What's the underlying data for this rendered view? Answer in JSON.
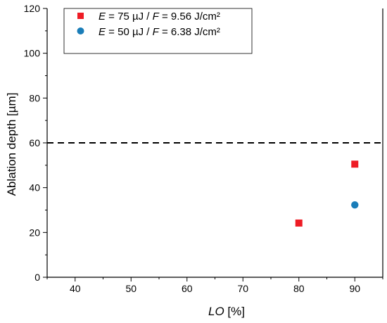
{
  "chart_data": {
    "type": "scatter",
    "xlabel_italic": "LO",
    "xlabel_rest": " [%]",
    "ylabel": "Ablation depth [µm]",
    "xlim": [
      35,
      95
    ],
    "ylim": [
      0,
      120
    ],
    "xticks": [
      40,
      50,
      60,
      70,
      80,
      90
    ],
    "yticks": [
      0,
      20,
      40,
      60,
      80,
      100,
      120
    ],
    "grid": false,
    "legend_position": "top-left",
    "reference_line": {
      "y": 60,
      "style": "dashed",
      "color": "#000000"
    },
    "series": [
      {
        "legend_parts": [
          "E",
          " = 75 µJ / ",
          "F",
          " = 9.56 J/cm²"
        ],
        "marker": "square",
        "color": "#ee1c25",
        "points": [
          {
            "x": 80,
            "y": 24.2
          },
          {
            "x": 90,
            "y": 50.5
          }
        ]
      },
      {
        "legend_parts": [
          "E",
          " = 50 µJ / ",
          "F",
          " = 6.38 J/cm²"
        ],
        "marker": "circle",
        "color": "#1a7db8",
        "points": [
          {
            "x": 90,
            "y": 32.3
          }
        ]
      }
    ]
  }
}
